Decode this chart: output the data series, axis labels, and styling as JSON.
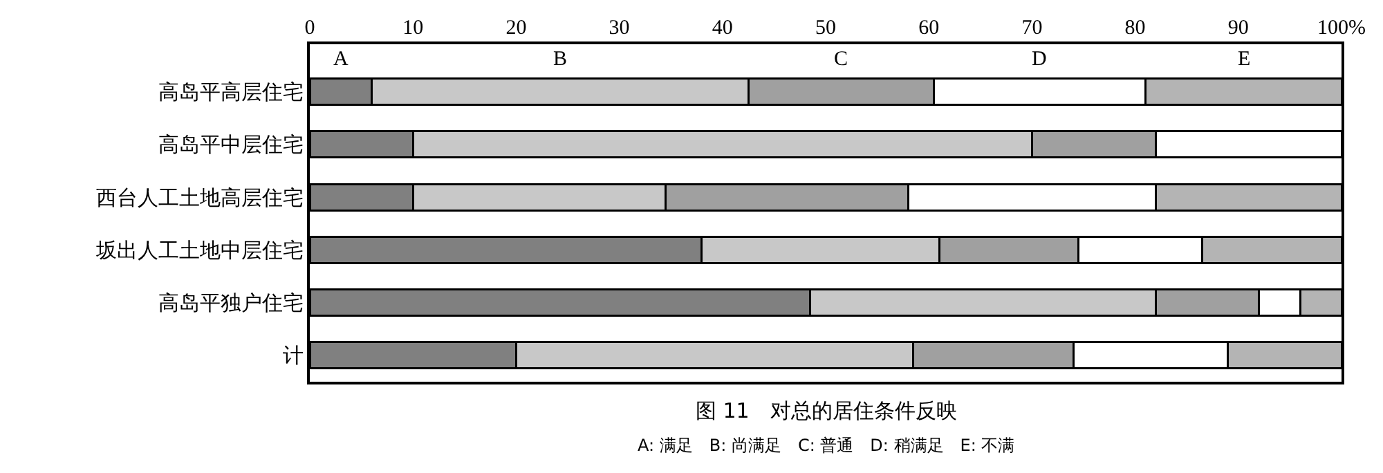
{
  "chart_data": {
    "type": "bar",
    "orientation": "horizontal",
    "stacked": true,
    "title": "图 11　对总的居住条件反映",
    "annotations": [
      "A: 满足　B: 尚满足　C: 普通　D: 稍满足　E: 不满"
    ],
    "categories": [
      "高岛平高层住宅",
      "高岛平中层住宅",
      "西台人工土地高层住宅",
      "坂出人工土地中层住宅",
      "高岛平独户住宅",
      "计"
    ],
    "series": [
      {
        "name": "A",
        "color": "#808080",
        "values": [
          6,
          10,
          10,
          38,
          48.5,
          20
        ]
      },
      {
        "name": "B",
        "color": "#c8c8c8",
        "values": [
          36.5,
          60,
          24.5,
          23,
          33.5,
          38.5
        ]
      },
      {
        "name": "C",
        "color": "#a0a0a0",
        "values": [
          18,
          12,
          23.5,
          13.5,
          10,
          15.5
        ]
      },
      {
        "name": "D",
        "color": "#ffffff",
        "values": [
          20.5,
          18,
          24,
          12,
          4,
          15
        ]
      },
      {
        "name": "E",
        "color": "#b4b4b4",
        "values": [
          19,
          null,
          18,
          13.5,
          4,
          11
        ]
      }
    ],
    "xlim": [
      0,
      100
    ],
    "xticks": [
      0,
      10,
      20,
      30,
      40,
      50,
      60,
      70,
      80,
      90,
      {
        "value": 100,
        "label": "100%"
      }
    ],
    "legend": false
  }
}
